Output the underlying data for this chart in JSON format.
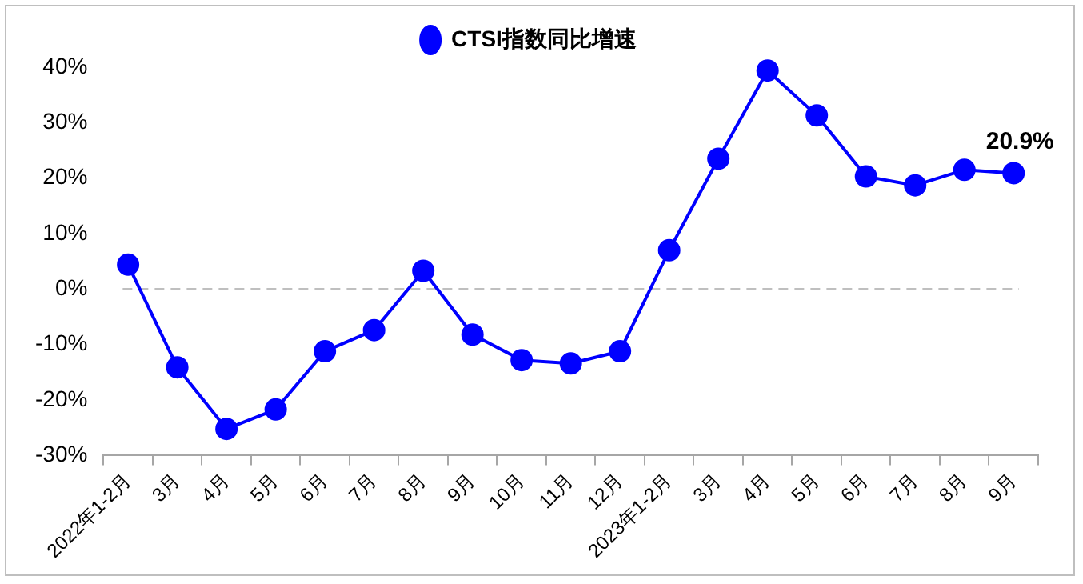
{
  "chart_data": {
    "type": "line",
    "categories": [
      "2022年1-2月",
      "3月",
      "4月",
      "5月",
      "6月",
      "7月",
      "8月",
      "9月",
      "10月",
      "11月",
      "12月",
      "2023年1-2月",
      "3月",
      "4月",
      "5月",
      "6月",
      "7月",
      "8月",
      "9月"
    ],
    "series": [
      {
        "name": "CTSI指数同比增速",
        "color": "#0000ff",
        "values": [
          4.4,
          -14.1,
          -25.2,
          -21.7,
          -11.2,
          -7.4,
          3.3,
          -8.2,
          -12.8,
          -13.4,
          -11.2,
          7.0,
          23.5,
          39.4,
          31.3,
          20.3,
          18.7,
          21.5,
          20.9
        ],
        "value_labels": [
          null,
          null,
          null,
          null,
          null,
          null,
          null,
          null,
          null,
          null,
          null,
          null,
          null,
          null,
          null,
          null,
          null,
          null,
          "20.9%"
        ]
      }
    ],
    "ylim": [
      -30,
      40
    ],
    "yticks": [
      {
        "value": -30,
        "label": "-30%"
      },
      {
        "value": -20,
        "label": "-20%"
      },
      {
        "value": -10,
        "label": "-10%"
      },
      {
        "value": 0,
        "label": "0%"
      },
      {
        "value": 10,
        "label": "10%"
      },
      {
        "value": 20,
        "label": "20%"
      },
      {
        "value": 30,
        "label": "30%"
      },
      {
        "value": 40,
        "label": "40%"
      }
    ],
    "ref_lines": [
      {
        "axis": "y",
        "value": 0,
        "color": "#bfbfbf",
        "line_style": "dashed"
      }
    ],
    "grid": false,
    "legend": "top",
    "marker": "circle",
    "line_style": "solid"
  }
}
